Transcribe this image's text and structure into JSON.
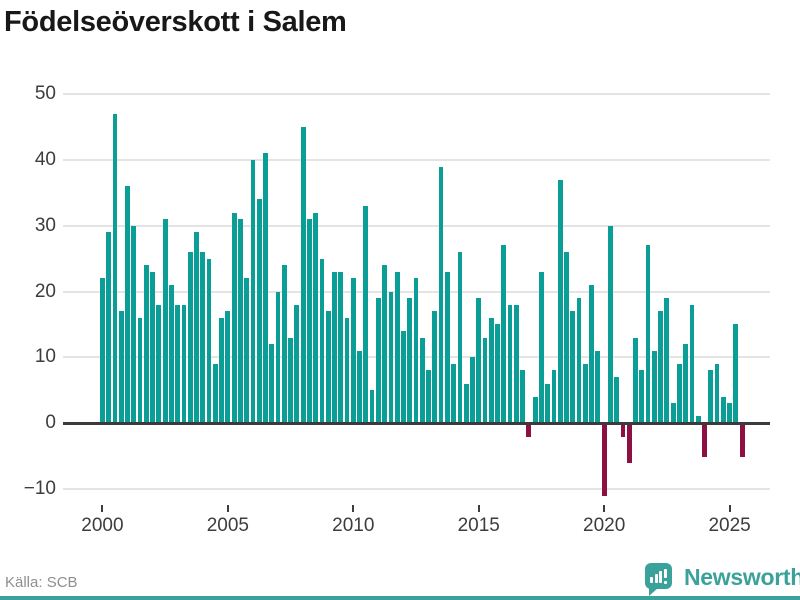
{
  "title": "Födelseöverskott i Salem",
  "source": "Källa: SCB",
  "branding": {
    "name": "Newsworthy",
    "icon": "bar-chart-speech-bubble-icon",
    "color": "#3aa29a"
  },
  "chart_data": {
    "type": "bar",
    "title": "Födelseöverskott i Salem",
    "frequency": "quarterly",
    "start_year": 2000,
    "start_quarter": 1,
    "end_year": 2025,
    "end_quarter": 3,
    "x_tick_labels": [
      "2000",
      "2005",
      "2010",
      "2015",
      "2020",
      "2025"
    ],
    "y_ticks": [
      50,
      40,
      30,
      20,
      10,
      0,
      -10
    ],
    "y_tick_labels": [
      "50",
      "40",
      "30",
      "20",
      "10",
      "0",
      "−10"
    ],
    "ylim": [
      -13,
      53
    ],
    "grid": "horizontal",
    "legend": "none",
    "positive_color": "#0a9e96",
    "negative_color": "#8e1043",
    "values": [
      22,
      29,
      47,
      17,
      36,
      30,
      16,
      24,
      23,
      18,
      31,
      21,
      18,
      18,
      26,
      29,
      26,
      25,
      9,
      16,
      17,
      32,
      31,
      22,
      40,
      34,
      41,
      12,
      20,
      24,
      13,
      18,
      45,
      31,
      32,
      25,
      17,
      23,
      23,
      16,
      22,
      11,
      33,
      5,
      19,
      24,
      20,
      23,
      14,
      19,
      22,
      13,
      8,
      17,
      39,
      23,
      9,
      26,
      6,
      10,
      19,
      13,
      16,
      15,
      27,
      18,
      18,
      8,
      -2,
      4,
      23,
      6,
      8,
      37,
      26,
      17,
      19,
      9,
      21,
      11,
      -11,
      30,
      7,
      -2,
      -6,
      13,
      8,
      27,
      11,
      17,
      19,
      3,
      9,
      12,
      18,
      1,
      -5,
      8,
      9,
      4,
      3,
      15,
      -5
    ]
  }
}
